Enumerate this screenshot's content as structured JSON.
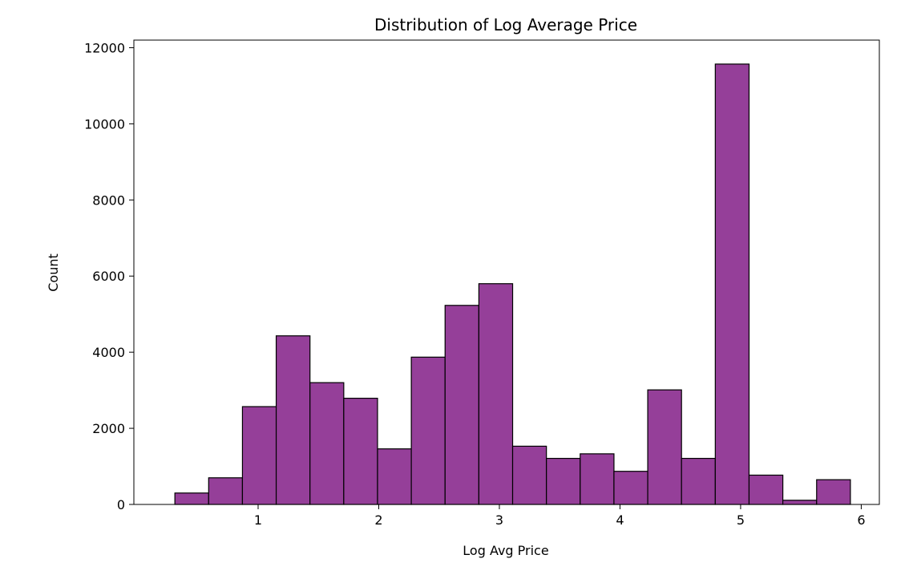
{
  "chart_data": {
    "type": "bar",
    "title": "Distribution of Log Average Price",
    "xlabel": "Log Avg Price",
    "ylabel": "Count",
    "bin_edges": [
      0.31,
      0.59,
      0.87,
      1.15,
      1.43,
      1.71,
      1.99,
      2.27,
      2.55,
      2.83,
      3.11,
      3.39,
      3.67,
      3.95,
      4.23,
      4.51,
      4.79,
      5.07,
      5.35,
      5.63,
      5.91
    ],
    "values": [
      300,
      700,
      2570,
      4430,
      3200,
      2790,
      1460,
      3870,
      5230,
      5800,
      1530,
      1210,
      1330,
      870,
      3010,
      1210,
      11570,
      770,
      110,
      650
    ],
    "xlim": [
      -0.03,
      6.15
    ],
    "ylim": [
      0,
      12200
    ],
    "xticks": [
      "1",
      "2",
      "3",
      "4",
      "5",
      "6"
    ],
    "yticks": [
      "0",
      "2000",
      "4000",
      "6000",
      "8000",
      "10000",
      "12000"
    ],
    "bar_color": "#953f99",
    "edge_color": "#000000",
    "grid": false,
    "legend": false
  }
}
